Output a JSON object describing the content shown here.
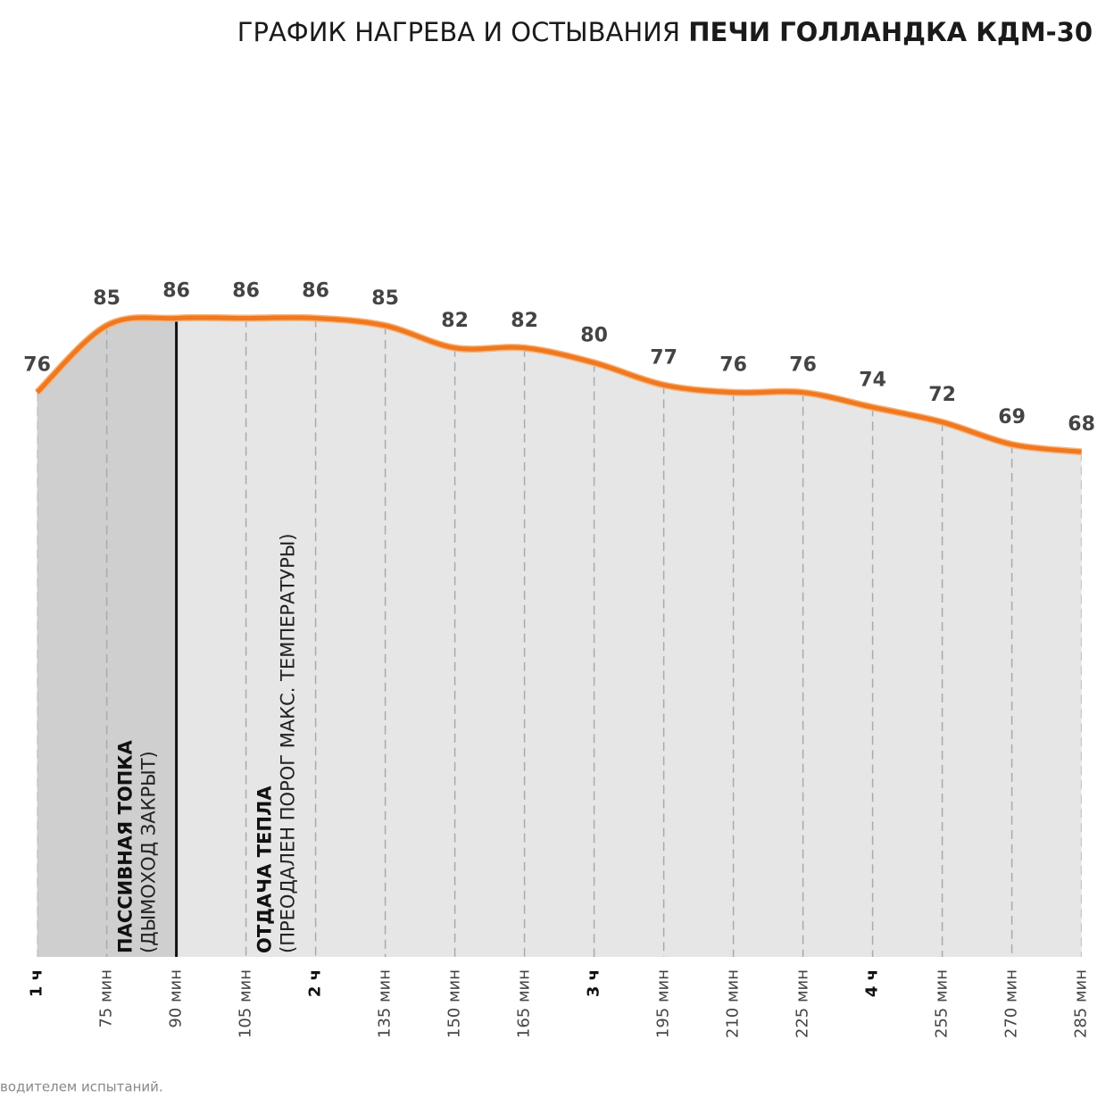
{
  "chart_data": {
    "type": "line",
    "title": "ГРАФИК НАГРЕВА И ОСТЫВАНИЯ",
    "title_bold": "ПЕЧИ ГОЛЛАНДКА КДМ-30",
    "x": [
      60,
      75,
      90,
      105,
      120,
      135,
      150,
      165,
      180,
      195,
      210,
      225,
      240,
      255,
      270,
      285
    ],
    "values": [
      76,
      85,
      86,
      86,
      86,
      85,
      82,
      82,
      80,
      77,
      76,
      76,
      74,
      72,
      69,
      68
    ],
    "color": "#f07820",
    "xlim": [
      52,
      292
    ],
    "ylim": [
      0,
      100
    ],
    "xticks": [
      {
        "value": 60,
        "label": "1 ч"
      },
      {
        "value": 75,
        "label": "75 мин"
      },
      {
        "value": 90,
        "label": "90 мин"
      },
      {
        "value": 105,
        "label": "105 мин"
      },
      {
        "value": 120,
        "label": "2 ч"
      },
      {
        "value": 135,
        "label": "135 мин"
      },
      {
        "value": 150,
        "label": "150 мин"
      },
      {
        "value": 165,
        "label": "165 мин"
      },
      {
        "value": 180,
        "label": "3 ч"
      },
      {
        "value": 195,
        "label": "195 мин"
      },
      {
        "value": 210,
        "label": "210 мин"
      },
      {
        "value": 225,
        "label": "225 мин"
      },
      {
        "value": 240,
        "label": "4 ч"
      },
      {
        "value": 255,
        "label": "255 мин"
      },
      {
        "value": 270,
        "label": "270 мин"
      },
      {
        "value": 285,
        "label": "285 мин"
      }
    ],
    "annotations": [
      {
        "x": 90,
        "title": "ПАССИВНАЯ ТОПКА",
        "text": "(ДЫМОХОД ЗАКРЫТ)"
      },
      {
        "x": 120,
        "title": "ОТДАЧА ТЕПЛА",
        "text": "(ПРЕОДАЛЕН ПОРОГ МАКС. ТЕМПЕРАТУРЫ)"
      }
    ],
    "footnote": "водителем испытаний."
  }
}
